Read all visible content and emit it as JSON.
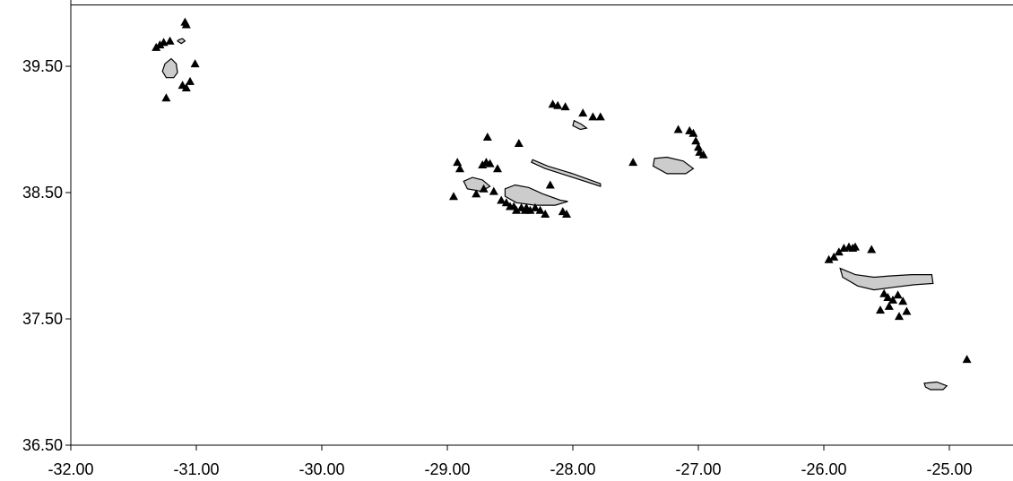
{
  "chart_data": {
    "type": "scatter",
    "title": "",
    "xlabel": "",
    "ylabel": "",
    "xlim": [
      -32.0,
      -24.6
    ],
    "ylim": [
      36.5,
      40.0
    ],
    "x_ticks": [
      "-32.00",
      "-31.00",
      "-30.00",
      "-29.00",
      "-28.00",
      "-27.00",
      "-26.00",
      "-25.00"
    ],
    "y_ticks": [
      "39.50",
      "38.50",
      "37.50",
      "36.50"
    ],
    "grid": false,
    "island_fill": "#cccccc",
    "marker_color": "#000000",
    "islands": [
      {
        "points": [
          [
            -31.25,
            39.52
          ],
          [
            -31.2,
            39.56
          ],
          [
            -31.16,
            39.52
          ],
          [
            -31.15,
            39.45
          ],
          [
            -31.18,
            39.41
          ],
          [
            -31.24,
            39.41
          ],
          [
            -31.27,
            39.46
          ]
        ]
      },
      {
        "points": [
          [
            -31.14,
            39.71
          ],
          [
            -31.11,
            39.72
          ],
          [
            -31.09,
            39.7
          ],
          [
            -31.12,
            39.68
          ],
          [
            -31.15,
            39.7
          ]
        ]
      },
      {
        "points": [
          [
            -28.87,
            38.59
          ],
          [
            -28.8,
            38.62
          ],
          [
            -28.72,
            38.6
          ],
          [
            -28.66,
            38.55
          ],
          [
            -28.73,
            38.51
          ],
          [
            -28.84,
            38.53
          ]
        ]
      },
      {
        "points": [
          [
            -28.54,
            38.53
          ],
          [
            -28.46,
            38.56
          ],
          [
            -28.35,
            38.54
          ],
          [
            -28.24,
            38.49
          ],
          [
            -28.1,
            38.44
          ],
          [
            -28.04,
            38.43
          ],
          [
            -28.14,
            38.4
          ],
          [
            -28.3,
            38.4
          ],
          [
            -28.45,
            38.42
          ],
          [
            -28.54,
            38.47
          ]
        ]
      },
      {
        "points": [
          [
            -28.32,
            38.76
          ],
          [
            -28.2,
            38.71
          ],
          [
            -28.0,
            38.65
          ],
          [
            -27.78,
            38.57
          ],
          [
            -27.78,
            38.55
          ],
          [
            -28.0,
            38.62
          ],
          [
            -28.22,
            38.69
          ],
          [
            -28.33,
            38.74
          ]
        ]
      },
      {
        "points": [
          [
            -27.99,
            39.07
          ],
          [
            -27.93,
            39.04
          ],
          [
            -27.89,
            39.01
          ],
          [
            -27.94,
            39.0
          ],
          [
            -28.0,
            39.03
          ]
        ]
      },
      {
        "points": [
          [
            -27.35,
            38.77
          ],
          [
            -27.25,
            38.78
          ],
          [
            -27.12,
            38.75
          ],
          [
            -27.04,
            38.69
          ],
          [
            -27.1,
            38.65
          ],
          [
            -27.25,
            38.65
          ],
          [
            -27.36,
            38.71
          ]
        ]
      },
      {
        "points": [
          [
            -25.87,
            37.9
          ],
          [
            -25.75,
            37.85
          ],
          [
            -25.6,
            37.83
          ],
          [
            -25.48,
            37.84
          ],
          [
            -25.3,
            37.85
          ],
          [
            -25.14,
            37.85
          ],
          [
            -25.13,
            37.78
          ],
          [
            -25.28,
            37.77
          ],
          [
            -25.45,
            37.75
          ],
          [
            -25.6,
            37.73
          ],
          [
            -25.73,
            37.76
          ],
          [
            -25.85,
            37.83
          ]
        ]
      },
      {
        "points": [
          [
            -25.2,
            36.99
          ],
          [
            -25.1,
            37.0
          ],
          [
            -25.02,
            36.97
          ],
          [
            -25.05,
            36.94
          ],
          [
            -25.15,
            36.94
          ],
          [
            -25.19,
            36.96
          ]
        ]
      }
    ],
    "x": [
      -31.32,
      -31.29,
      -31.26,
      -31.21,
      -31.09,
      -31.08,
      -31.01,
      -31.11,
      -31.08,
      -31.05,
      -31.24,
      -28.68,
      -28.95,
      -28.9,
      -28.92,
      -28.77,
      -28.72,
      -28.69,
      -28.66,
      -28.6,
      -28.71,
      -28.63,
      -28.57,
      -28.53,
      -28.5,
      -28.45,
      -28.41,
      -28.38,
      -28.34,
      -28.3,
      -28.26,
      -28.47,
      -28.37,
      -28.22,
      -28.18,
      -28.08,
      -28.05,
      -28.43,
      -28.16,
      -28.12,
      -28.06,
      -27.92,
      -27.84,
      -27.78,
      -27.52,
      -27.16,
      -27.07,
      -27.04,
      -27.02,
      -27.0,
      -26.99,
      -26.96,
      -25.96,
      -25.92,
      -25.88,
      -25.84,
      -25.8,
      -25.77,
      -25.75,
      -25.62,
      -25.52,
      -25.49,
      -25.45,
      -25.41,
      -25.37,
      -25.34,
      -25.55,
      -25.48,
      -25.4,
      -24.86
    ],
    "y": [
      39.65,
      39.67,
      39.69,
      39.7,
      39.85,
      39.83,
      39.52,
      39.35,
      39.33,
      39.38,
      39.25,
      38.94,
      38.47,
      38.69,
      38.74,
      38.49,
      38.72,
      38.74,
      38.73,
      38.69,
      38.53,
      38.51,
      38.44,
      38.42,
      38.39,
      38.36,
      38.38,
      38.36,
      38.36,
      38.38,
      38.36,
      38.39,
      38.38,
      38.33,
      38.56,
      38.35,
      38.33,
      38.89,
      39.2,
      39.19,
      39.18,
      39.13,
      39.1,
      39.1,
      38.74,
      39.0,
      38.99,
      38.97,
      38.91,
      38.86,
      38.82,
      38.8,
      37.97,
      37.99,
      38.03,
      38.06,
      38.07,
      38.06,
      38.07,
      38.05,
      37.7,
      37.67,
      37.65,
      37.69,
      37.64,
      37.56,
      37.57,
      37.6,
      37.52,
      37.18
    ]
  }
}
